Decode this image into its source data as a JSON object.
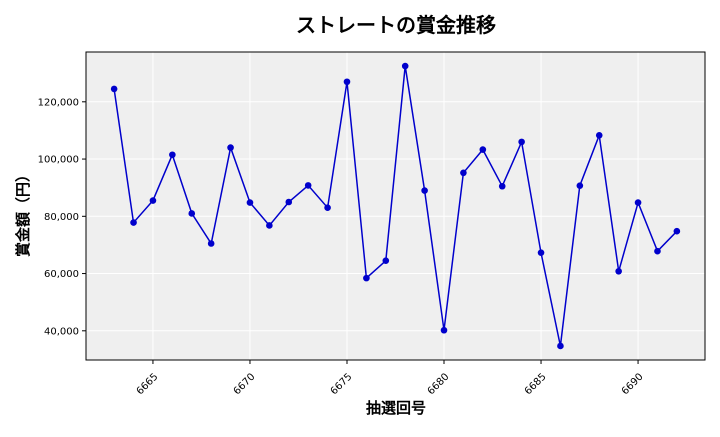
{
  "chart_data": {
    "type": "line",
    "title": "ストレートの賞金推移",
    "xlabel": "抽選回号",
    "ylabel": "賞金額（円）",
    "x": [
      6663,
      6664,
      6665,
      6666,
      6667,
      6668,
      6669,
      6670,
      6671,
      6672,
      6673,
      6674,
      6675,
      6676,
      6677,
      6678,
      6679,
      6680,
      6681,
      6682,
      6683,
      6684,
      6685,
      6686,
      6687,
      6688,
      6689,
      6690,
      6691,
      6692
    ],
    "series": [
      {
        "values": [
          124500,
          77800,
          85500,
          101500,
          81000,
          70500,
          104000,
          84800,
          76800,
          85000,
          90800,
          83000,
          127000,
          58400,
          64500,
          132500,
          89000,
          40200,
          95200,
          103300,
          90500,
          106000,
          67300,
          34700,
          90700,
          108300,
          60800,
          84800,
          67800,
          74800
        ],
        "color": "#0000cc"
      }
    ],
    "xticks": [
      6665,
      6670,
      6675,
      6680,
      6685,
      6690
    ],
    "xtick_labels": [
      "6665",
      "6670",
      "6675",
      "6680",
      "6685",
      "6690"
    ],
    "yticks": [
      40000,
      60000,
      80000,
      100000,
      120000
    ],
    "ytick_labels": [
      "40,000",
      "60,000",
      "80,000",
      "100,000",
      "120,000"
    ],
    "xlim": [
      6661.55,
      6693.45
    ],
    "ylim": [
      29800,
      137400
    ],
    "grid": true,
    "background": "#efefef"
  }
}
